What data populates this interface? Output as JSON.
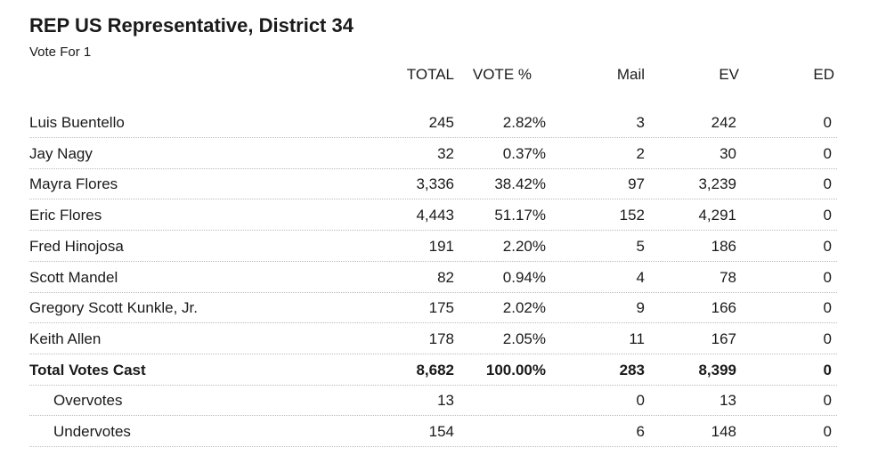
{
  "header": {
    "title": "REP US Representative, District 34",
    "subtitle": "Vote For 1"
  },
  "table": {
    "columns": [
      "TOTAL",
      "VOTE %",
      "Mail",
      "EV",
      "ED"
    ],
    "rows": [
      {
        "name": "Luis Buentello",
        "total": "245",
        "vote_pct": "2.82%",
        "mail": "3",
        "ev": "242",
        "ed": "0"
      },
      {
        "name": "Jay Nagy",
        "total": "32",
        "vote_pct": "0.37%",
        "mail": "2",
        "ev": "30",
        "ed": "0"
      },
      {
        "name": "Mayra Flores",
        "total": "3,336",
        "vote_pct": "38.42%",
        "mail": "97",
        "ev": "3,239",
        "ed": "0"
      },
      {
        "name": "Eric Flores",
        "total": "4,443",
        "vote_pct": "51.17%",
        "mail": "152",
        "ev": "4,291",
        "ed": "0"
      },
      {
        "name": "Fred Hinojosa",
        "total": "191",
        "vote_pct": "2.20%",
        "mail": "5",
        "ev": "186",
        "ed": "0"
      },
      {
        "name": "Scott Mandel",
        "total": "82",
        "vote_pct": "0.94%",
        "mail": "4",
        "ev": "78",
        "ed": "0"
      },
      {
        "name": "Gregory Scott Kunkle, Jr.",
        "total": "175",
        "vote_pct": "2.02%",
        "mail": "9",
        "ev": "166",
        "ed": "0"
      },
      {
        "name": "Keith Allen",
        "total": "178",
        "vote_pct": "2.05%",
        "mail": "11",
        "ev": "167",
        "ed": "0"
      }
    ],
    "total_row": {
      "name": "Total Votes Cast",
      "total": "8,682",
      "vote_pct": "100.00%",
      "mail": "283",
      "ev": "8,399",
      "ed": "0"
    },
    "extra_rows": [
      {
        "name": "Overvotes",
        "total": "13",
        "mail": "0",
        "ev": "13",
        "ed": "0"
      },
      {
        "name": "Undervotes",
        "total": "154",
        "mail": "6",
        "ev": "148",
        "ed": "0"
      }
    ]
  }
}
